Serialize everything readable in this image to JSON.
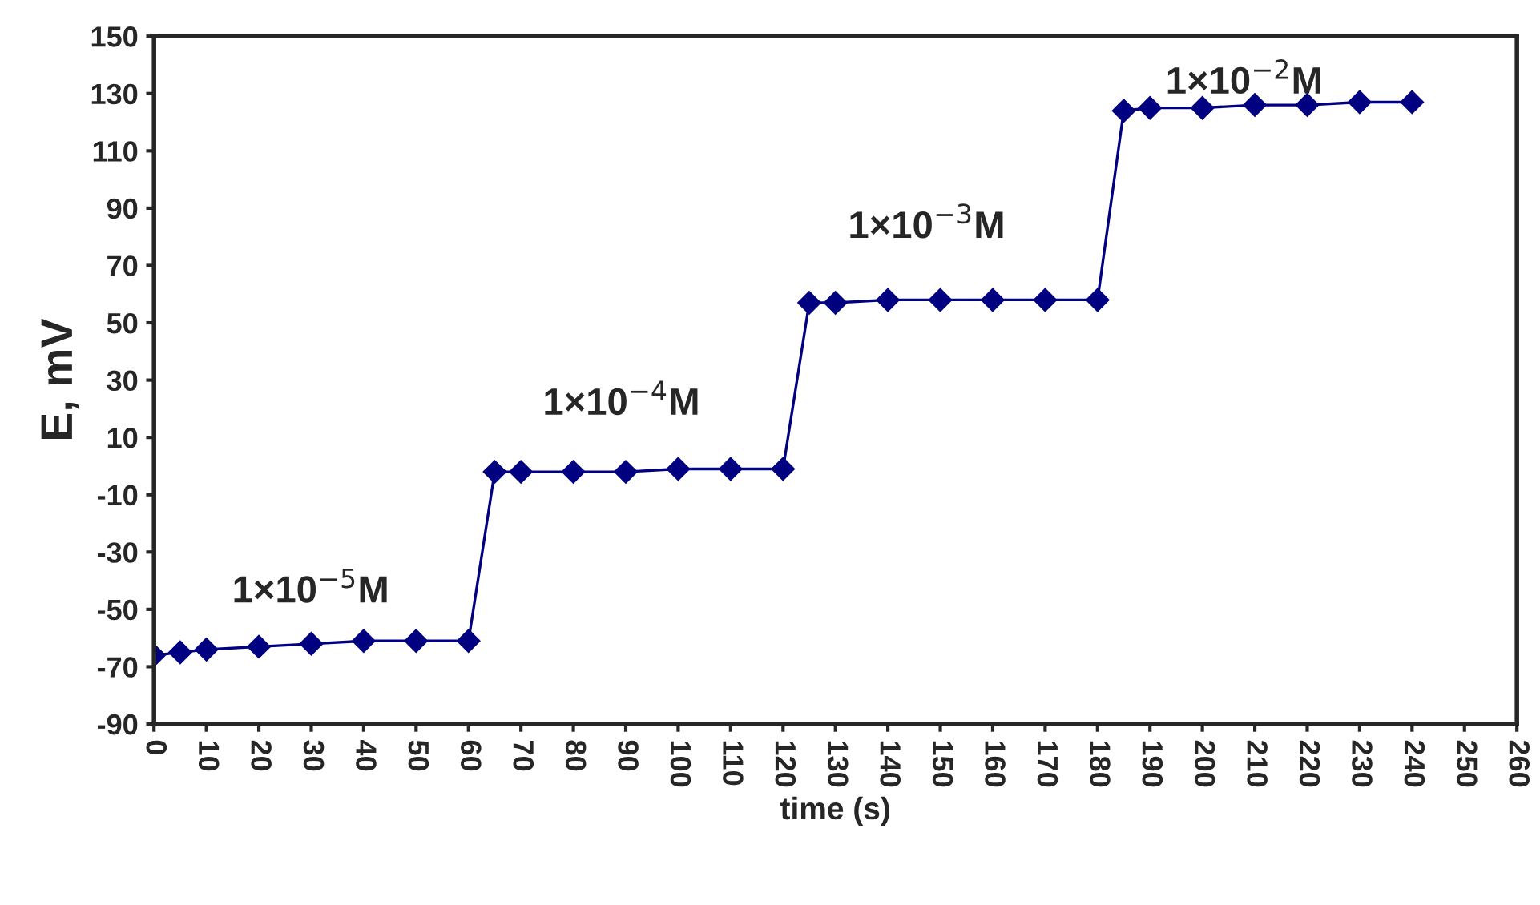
{
  "chart_data": {
    "type": "line",
    "xlabel": "time (s)",
    "ylabel": "E, mV",
    "x": [
      0,
      5,
      10,
      20,
      30,
      40,
      50,
      60,
      65,
      70,
      80,
      90,
      100,
      110,
      120,
      125,
      130,
      140,
      150,
      160,
      170,
      180,
      185,
      190,
      200,
      210,
      220,
      230,
      240
    ],
    "series": [
      {
        "color": "#000080",
        "values": [
          -66,
          -65,
          -64,
          -63,
          -62,
          -61,
          -61,
          -61,
          -2,
          -2,
          -2,
          -2,
          -1,
          -1,
          -1,
          57,
          57,
          58,
          58,
          58,
          58,
          58,
          124,
          125,
          125,
          126,
          126,
          127,
          127
        ]
      }
    ],
    "marker": "diamond",
    "line_style": "solid",
    "grid": false,
    "xlim": [
      0,
      260
    ],
    "xticks": [
      0,
      10,
      20,
      30,
      40,
      50,
      60,
      70,
      80,
      90,
      100,
      110,
      120,
      130,
      140,
      150,
      160,
      170,
      180,
      190,
      200,
      210,
      220,
      230,
      240,
      250,
      260
    ],
    "ylim": [
      -90,
      150
    ],
    "yticks": [
      -90,
      -70,
      -50,
      -30,
      -10,
      10,
      30,
      50,
      70,
      90,
      110,
      130,
      150
    ],
    "annotations": [
      "1×10$^{−5}$M",
      "1×10$^{−4}$M",
      "1×10$^{−3}$M",
      "1×10$^{−2}$M"
    ]
  }
}
